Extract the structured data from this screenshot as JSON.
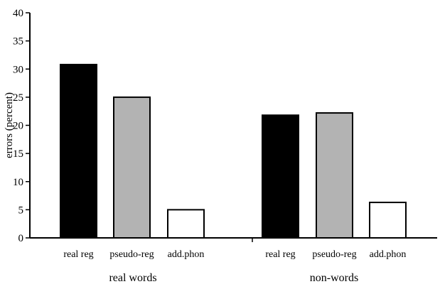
{
  "chart_data": {
    "type": "bar",
    "title": "",
    "xlabel": "",
    "ylabel": "errors (percent)",
    "ylim": [
      0,
      40
    ],
    "yticks": [
      0,
      5,
      10,
      15,
      20,
      25,
      30,
      35,
      40
    ],
    "grid": false,
    "legend": "none",
    "groups": [
      {
        "label": "real words",
        "bars": [
          {
            "category": "real reg",
            "value": 30.8,
            "color": "#000000"
          },
          {
            "category": "pseudo-reg",
            "value": 25.0,
            "color": "#b3b3b3"
          },
          {
            "category": "add.phon",
            "value": 5.0,
            "color": "#ffffff"
          }
        ]
      },
      {
        "label": "non-words",
        "bars": [
          {
            "category": "real reg",
            "value": 21.8,
            "color": "#000000"
          },
          {
            "category": "pseudo-reg",
            "value": 22.2,
            "color": "#b3b3b3"
          },
          {
            "category": "add.phon",
            "value": 6.3,
            "color": "#ffffff"
          }
        ]
      }
    ]
  }
}
